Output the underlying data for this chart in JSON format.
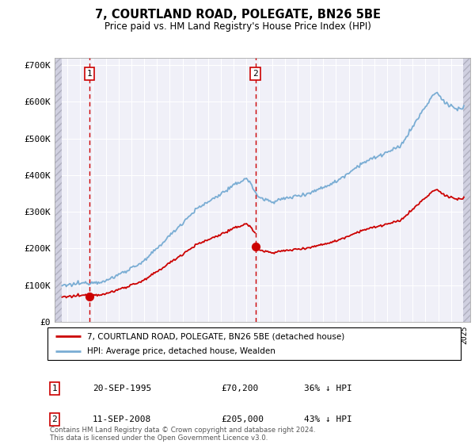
{
  "title": "7, COURTLAND ROAD, POLEGATE, BN26 5BE",
  "subtitle": "Price paid vs. HM Land Registry's House Price Index (HPI)",
  "hpi_color": "#7aadd4",
  "price_color": "#cc0000",
  "ylim": [
    0,
    720000
  ],
  "yticks": [
    0,
    100000,
    200000,
    300000,
    400000,
    500000,
    600000,
    700000
  ],
  "ytick_labels": [
    "£0",
    "£100K",
    "£200K",
    "£300K",
    "£400K",
    "£500K",
    "£600K",
    "£700K"
  ],
  "sale1": {
    "date_x": 1995.72,
    "price": 70200,
    "label": "1"
  },
  "sale2": {
    "date_x": 2008.7,
    "price": 205000,
    "label": "2"
  },
  "legend_line1": "7, COURTLAND ROAD, POLEGATE, BN26 5BE (detached house)",
  "legend_line2": "HPI: Average price, detached house, Wealden",
  "table_entries": [
    {
      "num": "1",
      "date": "20-SEP-1995",
      "price": "£70,200",
      "note": "36% ↓ HPI"
    },
    {
      "num": "2",
      "date": "11-SEP-2008",
      "price": "£205,000",
      "note": "43% ↓ HPI"
    }
  ],
  "footer": "Contains HM Land Registry data © Crown copyright and database right 2024.\nThis data is licensed under the Open Government Licence v3.0.",
  "xlim": [
    1993.0,
    2025.5
  ],
  "xstart": 1993.5,
  "xend": 2025.0
}
